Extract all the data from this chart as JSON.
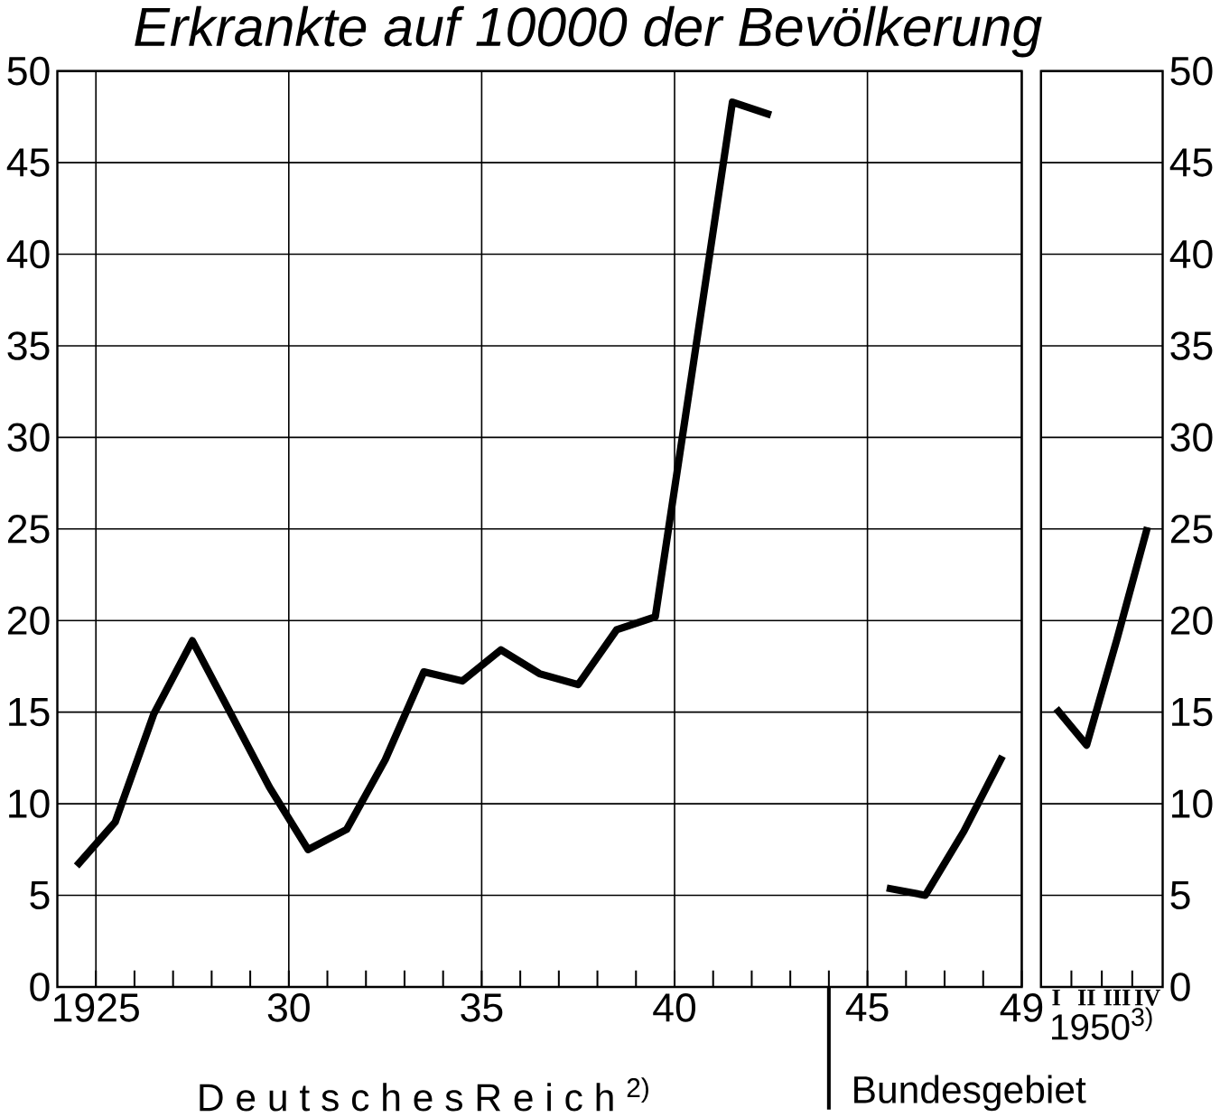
{
  "chart_data": [
    {
      "type": "line",
      "title": "Erkrankte auf 10000 der Bevölkerung",
      "xlabel": "D e u t s c h e s   R e i c h $^{2)}$",
      "x": [
        1924.5,
        1925.5,
        1926.5,
        1927.5,
        1928.5,
        1929.5,
        1930.5,
        1931.5,
        1932.5,
        1933.5,
        1934.5,
        1935.5,
        1936.5,
        1937.5,
        1938.5,
        1939.5,
        1940.5,
        1941.5,
        1942.5,
        1943.5,
        1944.5,
        1945.5,
        1946.5,
        1947.5,
        1948.5
      ],
      "values": [
        6.6,
        9.0,
        14.9,
        18.9,
        14.9,
        10.9,
        7.5,
        8.6,
        12.4,
        17.2,
        16.7,
        18.4,
        17.1,
        16.5,
        19.5,
        20.2,
        34.2,
        48.3,
        47.6,
        null,
        null,
        5.4,
        5.0,
        8.5,
        12.6
      ],
      "color": "#000000",
      "xlim": [
        1924,
        1949
      ],
      "xticks": [
        {
          "value": 1925,
          "label": "1925"
        },
        {
          "value": 1930,
          "label": "30"
        },
        {
          "value": 1935,
          "label": "35"
        },
        {
          "value": 1940,
          "label": "40"
        },
        {
          "value": 1945,
          "label": "45"
        },
        {
          "value": 1949,
          "label": "49"
        }
      ],
      "ylim": [
        0,
        50
      ],
      "yticks": [
        0,
        5,
        10,
        15,
        20,
        25,
        30,
        35,
        40,
        45,
        50
      ],
      "grid": true,
      "ref_lines": [
        {
          "axis": "x",
          "value": 1944,
          "label": "Bundesgebiet"
        }
      ]
    },
    {
      "type": "line",
      "xlabel": "1950$^{3)}$",
      "categories": [
        "I",
        "II",
        "III",
        "IV"
      ],
      "values": [
        15.2,
        13.2,
        19.0,
        25.1
      ],
      "color": "#000000",
      "ylim": [
        0,
        50
      ],
      "yticks": [
        0,
        5,
        10,
        15,
        20,
        25,
        30,
        35,
        40,
        45,
        50
      ],
      "grid": "y"
    }
  ]
}
